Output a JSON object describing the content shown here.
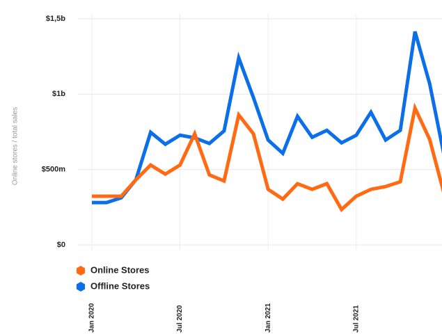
{
  "chart_data": {
    "type": "line",
    "ylabel": "Online stores / total sales",
    "categories": [
      "Jan 2020",
      null,
      null,
      null,
      null,
      null,
      "Jul 2020",
      null,
      null,
      null,
      null,
      null,
      "Jan 2021",
      null,
      null,
      null,
      null,
      null,
      "Jul 2021",
      null,
      null,
      null,
      null,
      null,
      null
    ],
    "series": [
      {
        "name": "Online Stores",
        "color": "#ff6a13",
        "values": [
          323,
          323,
          323,
          433,
          530,
          470,
          530,
          737,
          465,
          424,
          862,
          737,
          369,
          304,
          406,
          369,
          406,
          235,
          323,
          369,
          387,
          419,
          908,
          700,
          332
        ]
      },
      {
        "name": "Offline Stores",
        "color": "#0a6fe8",
        "values": [
          281,
          281,
          313,
          433,
          747,
          668,
          728,
          710,
          673,
          756,
          1240,
          977,
          696,
          608,
          853,
          714,
          760,
          677,
          728,
          880,
          696,
          760,
          1415,
          1069,
          585
        ]
      }
    ],
    "ylim": [
      0,
      1500
    ],
    "yticks": [
      {
        "value": 0,
        "label": "$0"
      },
      {
        "value": 500,
        "label": "$500m"
      },
      {
        "value": 1000,
        "label": "$1b"
      },
      {
        "value": 1500,
        "label": "$1,5b"
      }
    ],
    "grid": true,
    "legend": "bottom-left"
  }
}
